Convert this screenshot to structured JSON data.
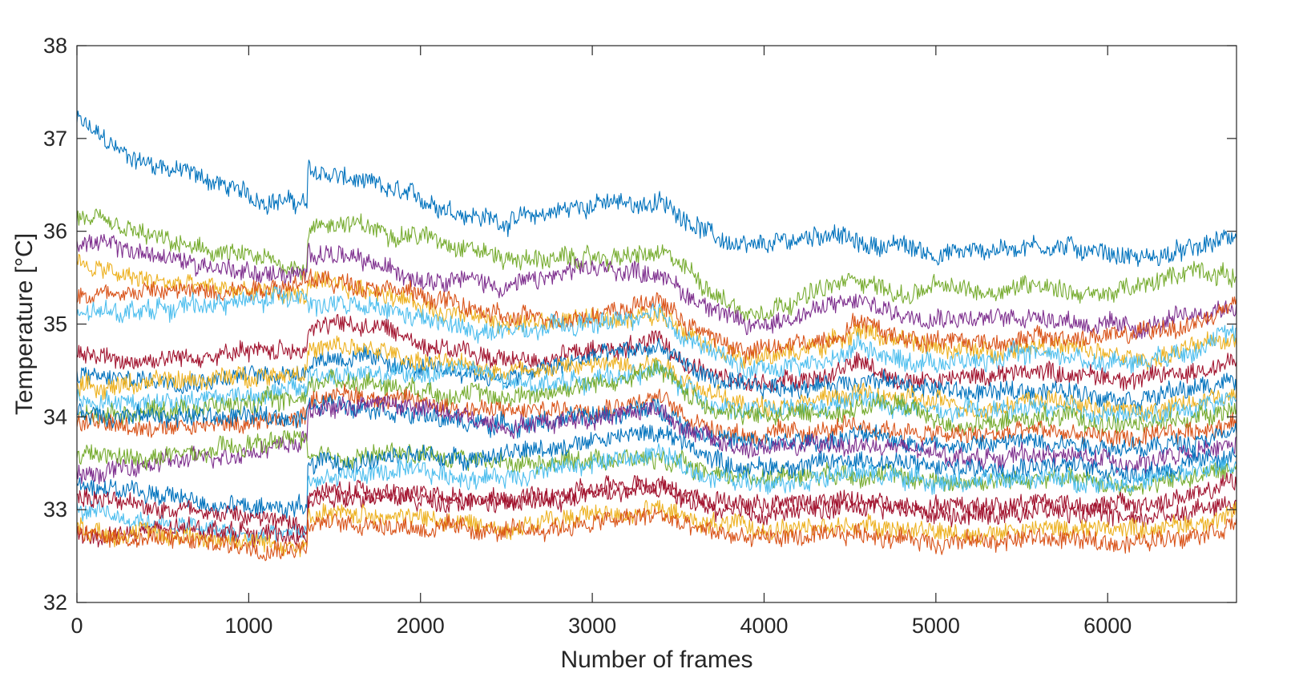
{
  "chart_data": {
    "type": "line",
    "title": "",
    "xlabel": "Number of frames",
    "ylabel": "Temperature [°C]",
    "xlim": [
      0,
      6750
    ],
    "ylim": [
      32,
      38
    ],
    "xticks": [
      0,
      1000,
      2000,
      3000,
      4000,
      5000,
      6000
    ],
    "yticks": [
      32,
      33,
      34,
      35,
      36,
      37,
      38
    ],
    "grid": false,
    "legend": "none",
    "noise_amplitude_degC": 0.09,
    "colors": [
      "#0072BD",
      "#D95319",
      "#EDB120",
      "#7E2F8E",
      "#77AC30",
      "#4DBEEE",
      "#A2142F"
    ],
    "x": [
      0,
      300,
      700,
      1050,
      1340,
      1345,
      1500,
      1800,
      2000,
      2250,
      2500,
      3000,
      3400,
      3550,
      3700,
      3900,
      4400,
      4550,
      4800,
      5000,
      5300,
      5600,
      5900,
      6200,
      6500,
      6750
    ],
    "series": [
      {
        "color": "#0072BD",
        "values": [
          37.2,
          36.8,
          36.6,
          36.35,
          36.3,
          36.65,
          36.6,
          36.45,
          36.35,
          36.2,
          36.1,
          36.3,
          36.3,
          36.15,
          35.95,
          35.8,
          36.0,
          35.85,
          35.85,
          35.75,
          35.8,
          35.85,
          35.8,
          35.7,
          35.8,
          35.95
        ]
      },
      {
        "color": "#77AC30",
        "values": [
          36.15,
          36.0,
          35.8,
          35.7,
          35.6,
          36.0,
          36.1,
          36.0,
          35.95,
          35.85,
          35.7,
          35.7,
          35.75,
          35.6,
          35.35,
          35.1,
          35.4,
          35.5,
          35.3,
          35.4,
          35.35,
          35.45,
          35.3,
          35.4,
          35.6,
          35.5
        ]
      },
      {
        "color": "#7E2F8E",
        "values": [
          35.9,
          35.8,
          35.65,
          35.55,
          35.5,
          35.8,
          35.75,
          35.6,
          35.5,
          35.5,
          35.4,
          35.6,
          35.55,
          35.3,
          35.2,
          34.95,
          35.2,
          35.25,
          35.1,
          35.1,
          35.05,
          35.1,
          35.0,
          34.95,
          35.1,
          35.2
        ]
      },
      {
        "color": "#EDB120",
        "values": [
          35.65,
          35.5,
          35.4,
          35.35,
          35.3,
          35.45,
          35.4,
          35.35,
          35.2,
          35.1,
          35.0,
          35.05,
          35.1,
          34.95,
          34.8,
          34.6,
          34.8,
          34.95,
          34.8,
          34.75,
          34.7,
          34.8,
          34.7,
          34.6,
          34.75,
          34.85
        ]
      },
      {
        "color": "#D95319",
        "values": [
          35.3,
          35.35,
          35.35,
          35.4,
          35.45,
          35.5,
          35.45,
          35.4,
          35.3,
          35.2,
          35.05,
          35.1,
          35.25,
          35.0,
          34.85,
          34.7,
          34.85,
          35.05,
          34.85,
          34.85,
          34.8,
          34.85,
          34.85,
          34.9,
          35.0,
          35.2
        ]
      },
      {
        "color": "#4DBEEE",
        "values": [
          35.1,
          35.15,
          35.2,
          35.25,
          35.35,
          35.2,
          35.2,
          35.15,
          35.05,
          34.95,
          34.9,
          35.0,
          35.1,
          34.85,
          34.7,
          34.5,
          34.6,
          34.8,
          34.6,
          34.6,
          34.6,
          34.7,
          34.6,
          34.6,
          34.75,
          34.9
        ]
      },
      {
        "color": "#A2142F",
        "values": [
          34.7,
          34.6,
          34.65,
          34.7,
          34.75,
          34.95,
          35.0,
          34.95,
          34.8,
          34.7,
          34.6,
          34.7,
          34.8,
          34.6,
          34.45,
          34.35,
          34.45,
          34.6,
          34.4,
          34.4,
          34.45,
          34.5,
          34.45,
          34.4,
          34.5,
          34.6
        ]
      },
      {
        "color": "#0072BD",
        "values": [
          34.45,
          34.4,
          34.4,
          34.45,
          34.5,
          34.6,
          34.65,
          34.6,
          34.5,
          34.5,
          34.4,
          34.65,
          34.75,
          34.55,
          34.4,
          34.3,
          34.35,
          34.4,
          34.35,
          34.3,
          34.25,
          34.3,
          34.25,
          34.2,
          34.3,
          34.4
        ]
      },
      {
        "color": "#EDB120",
        "values": [
          34.3,
          34.35,
          34.4,
          34.45,
          34.5,
          34.7,
          34.75,
          34.7,
          34.6,
          34.55,
          34.5,
          34.55,
          34.6,
          34.4,
          34.25,
          34.1,
          34.2,
          34.25,
          34.2,
          34.15,
          34.1,
          34.2,
          34.1,
          34.05,
          34.15,
          34.25
        ]
      },
      {
        "color": "#4DBEEE",
        "values": [
          34.2,
          34.15,
          34.2,
          34.25,
          34.3,
          34.45,
          34.45,
          34.45,
          34.45,
          34.55,
          34.35,
          34.4,
          34.5,
          34.3,
          34.15,
          34.05,
          34.1,
          34.2,
          34.1,
          34.05,
          34.05,
          34.1,
          34.05,
          34.0,
          34.1,
          34.2
        ]
      },
      {
        "color": "#77AC30",
        "values": [
          34.0,
          34.05,
          34.1,
          34.15,
          34.2,
          34.35,
          34.4,
          34.35,
          34.3,
          34.25,
          34.2,
          34.35,
          34.5,
          34.25,
          34.1,
          34.0,
          34.05,
          34.1,
          34.15,
          33.95,
          33.9,
          34.0,
          33.95,
          33.9,
          34.0,
          34.1
        ]
      },
      {
        "color": "#D95319",
        "values": [
          33.95,
          33.9,
          33.9,
          33.95,
          34.0,
          34.2,
          34.25,
          34.2,
          34.15,
          34.1,
          34.05,
          34.1,
          34.2,
          34.0,
          33.9,
          33.8,
          33.85,
          33.9,
          33.85,
          33.8,
          33.8,
          33.85,
          33.8,
          33.75,
          33.85,
          33.95
        ]
      },
      {
        "color": "#0072BD",
        "values": [
          34.05,
          34.0,
          34.0,
          34.0,
          34.0,
          34.1,
          34.15,
          34.1,
          34.0,
          33.95,
          33.9,
          34.0,
          34.1,
          33.9,
          33.8,
          33.7,
          33.75,
          33.8,
          33.75,
          33.7,
          33.7,
          33.75,
          33.7,
          33.65,
          33.75,
          33.85
        ]
      },
      {
        "color": "#7E2F8E",
        "values": [
          33.35,
          33.45,
          33.55,
          33.65,
          33.75,
          34.05,
          34.1,
          34.15,
          34.1,
          34.0,
          33.9,
          34.0,
          34.1,
          33.85,
          33.75,
          33.65,
          33.7,
          33.7,
          33.65,
          33.6,
          33.55,
          33.6,
          33.55,
          33.5,
          33.6,
          33.7
        ]
      },
      {
        "color": "#77AC30",
        "values": [
          33.6,
          33.55,
          33.6,
          33.7,
          33.8,
          33.55,
          33.55,
          33.6,
          33.6,
          33.55,
          33.5,
          33.55,
          33.55,
          33.45,
          33.4,
          33.35,
          33.4,
          33.4,
          33.35,
          33.3,
          33.3,
          33.35,
          33.3,
          33.25,
          33.35,
          33.45
        ]
      },
      {
        "color": "#0072BD",
        "values": [
          33.3,
          33.2,
          33.1,
          33.0,
          33.05,
          33.45,
          33.5,
          33.55,
          33.6,
          33.55,
          33.6,
          33.75,
          33.85,
          33.7,
          33.55,
          33.45,
          33.5,
          33.55,
          33.5,
          33.45,
          33.45,
          33.5,
          33.45,
          33.4,
          33.5,
          33.6
        ]
      },
      {
        "color": "#4DBEEE",
        "values": [
          33.0,
          32.9,
          32.8,
          32.7,
          32.75,
          33.3,
          33.35,
          33.4,
          33.4,
          33.35,
          33.35,
          33.5,
          33.6,
          33.45,
          33.35,
          33.3,
          33.35,
          33.4,
          33.35,
          33.3,
          33.3,
          33.35,
          33.3,
          33.3,
          33.4,
          33.5
        ]
      },
      {
        "color": "#A2142F",
        "values": [
          33.15,
          33.05,
          33.0,
          32.9,
          32.85,
          33.1,
          33.15,
          33.15,
          33.1,
          33.1,
          33.1,
          33.2,
          33.3,
          33.15,
          33.1,
          33.05,
          33.1,
          33.1,
          33.05,
          33.05,
          33.05,
          33.1,
          33.05,
          33.05,
          33.15,
          33.3
        ]
      },
      {
        "color": "#A2142F",
        "values": [
          32.7,
          32.75,
          32.8,
          32.75,
          32.7,
          33.15,
          33.2,
          33.2,
          33.15,
          33.1,
          33.05,
          33.15,
          33.25,
          33.1,
          33.0,
          32.95,
          33.0,
          33.05,
          33.0,
          32.95,
          32.95,
          33.0,
          32.95,
          32.9,
          33.0,
          33.1
        ]
      },
      {
        "color": "#EDB120",
        "values": [
          32.8,
          32.75,
          32.7,
          32.65,
          32.6,
          32.9,
          32.95,
          32.95,
          32.9,
          32.85,
          32.8,
          32.95,
          33.0,
          32.9,
          32.85,
          32.8,
          32.8,
          32.85,
          32.8,
          32.75,
          32.75,
          32.8,
          32.8,
          32.8,
          32.85,
          32.95
        ]
      },
      {
        "color": "#D95319",
        "values": [
          32.75,
          32.7,
          32.65,
          32.6,
          32.6,
          32.85,
          32.85,
          32.85,
          32.8,
          32.8,
          32.75,
          32.85,
          32.95,
          32.8,
          32.75,
          32.7,
          32.7,
          32.75,
          32.7,
          32.65,
          32.65,
          32.7,
          32.65,
          32.65,
          32.75,
          32.85
        ]
      }
    ]
  }
}
